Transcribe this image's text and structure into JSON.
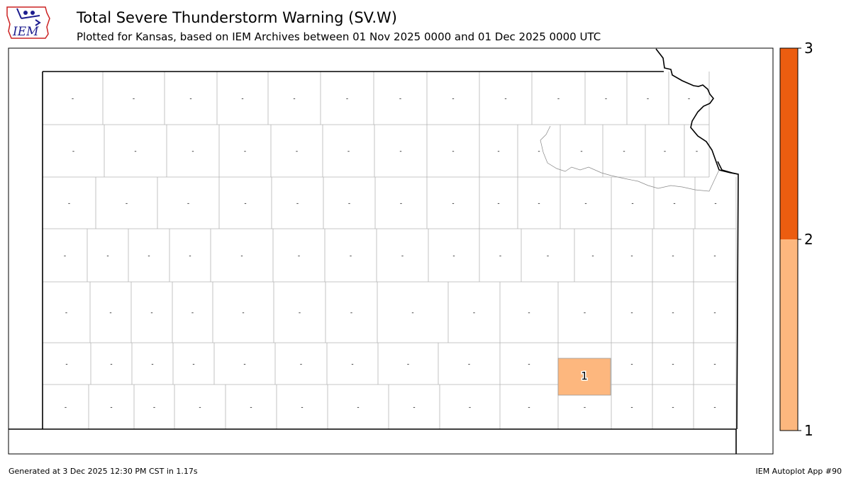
{
  "title": "Total Severe Thunderstorm Warning (SV.W)",
  "subtitle": "Plotted for Kansas, based on IEM Archives  between 01 Nov 2025 0000 and 01 Dec 2025 0000 UTC",
  "logo_text": "IEM",
  "footer": {
    "generated": "Generated at 3 Dec 2025 12:30 PM CST in 1.17s",
    "app": "IEM Autoplot App #90"
  },
  "colors": {
    "low": "#FDB77E",
    "high": "#EC5D10",
    "zero": "#FFFFFF",
    "outline": "#AAAAAA"
  },
  "colorbar": {
    "ticks": [
      "1",
      "2",
      "3"
    ]
  },
  "zero_marker": "-",
  "highlighted_county": {
    "value": "1"
  }
}
